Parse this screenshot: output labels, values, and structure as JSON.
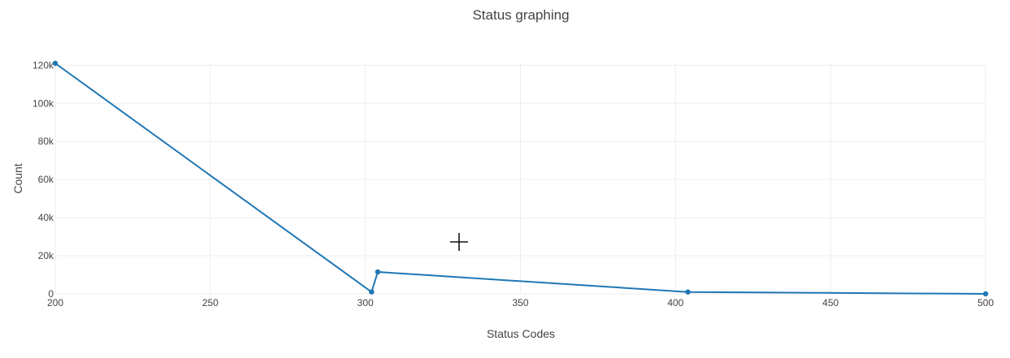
{
  "chart_data": {
    "type": "line",
    "title": "Status graphing",
    "xlabel": "Status Codes",
    "ylabel": "Count",
    "xlim": [
      200,
      500
    ],
    "ylim": [
      0,
      121000
    ],
    "x_ticks": [
      200,
      250,
      300,
      350,
      400,
      450,
      500
    ],
    "y_ticks": [
      0,
      20000,
      40000,
      60000,
      80000,
      100000,
      120000
    ],
    "y_tick_labels": [
      "0",
      "20k",
      "40k",
      "60k",
      "80k",
      "100k",
      "120k"
    ],
    "grid": true,
    "legend": "none",
    "series": [
      {
        "color": "#1f77b4",
        "x": [
          200,
          302,
          304,
          404,
          500
        ],
        "y": [
          121000,
          1000,
          11500,
          1000,
          0
        ]
      }
    ]
  }
}
